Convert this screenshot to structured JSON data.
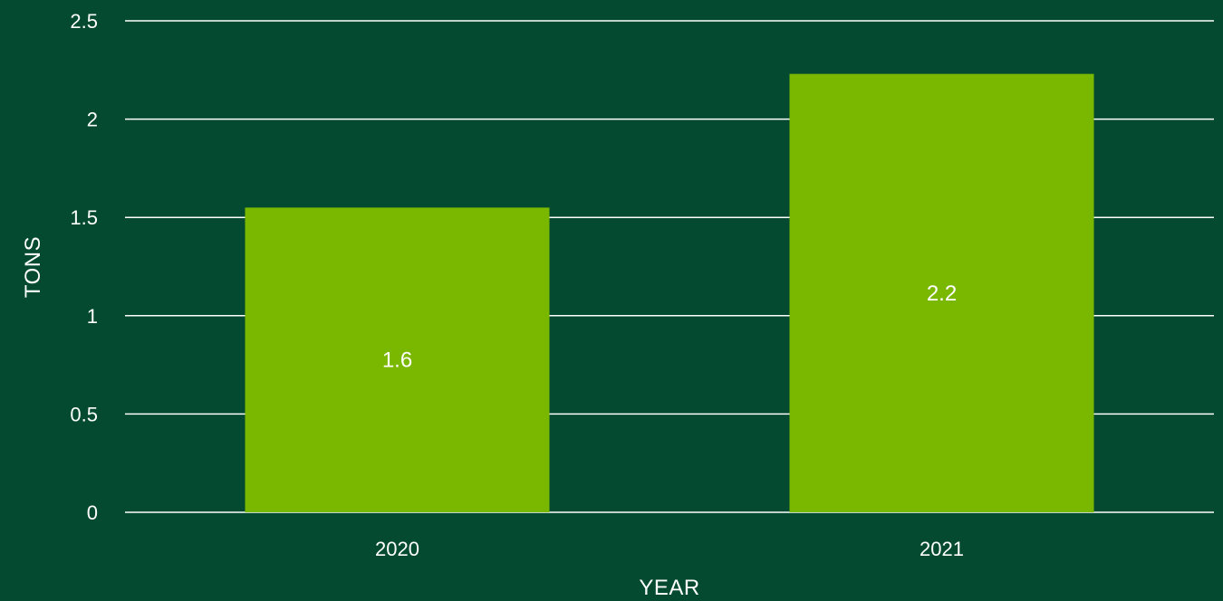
{
  "colors": {
    "background": "#034a30",
    "bar": "#7ab800",
    "gridline": "#ffffff",
    "text": "#ffffff"
  },
  "chart_data": {
    "type": "bar",
    "categories": [
      "2020",
      "2021"
    ],
    "values": [
      1.55,
      2.23
    ],
    "data_labels": [
      "1.6",
      "2.2"
    ],
    "xlabel": "YEAR",
    "ylabel": "TONS",
    "ylim": [
      0,
      2.5
    ],
    "yticks": [
      "0",
      "0.5",
      "1",
      "1.5",
      "2",
      "2.5"
    ],
    "grid": true,
    "legend": "none"
  }
}
